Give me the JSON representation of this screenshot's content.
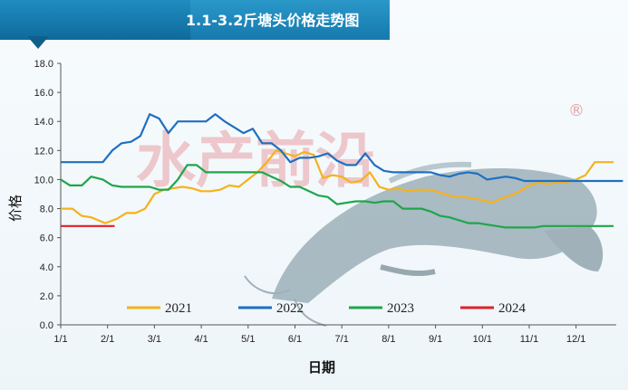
{
  "header": {
    "title": "1.1-3.2斤塘头价格走势图"
  },
  "watermark": {
    "text": "水产前沿",
    "mark": "®"
  },
  "chart_data": {
    "type": "line",
    "title": "1.1-3.2斤塘头价格走势图",
    "xlabel": "日期",
    "ylabel": "价格",
    "xticks": [
      "1/1",
      "2/1",
      "3/1",
      "4/1",
      "5/1",
      "6/1",
      "7/1",
      "8/1",
      "9/1",
      "10/1",
      "11/1",
      "12/1"
    ],
    "xlim": [
      0,
      12
    ],
    "ylim": [
      0,
      18
    ],
    "yticks": [
      "0.0",
      "2.0",
      "4.0",
      "6.0",
      "8.0",
      "10.0",
      "12.0",
      "14.0",
      "16.0",
      "18.0"
    ],
    "grid": false,
    "legend": "bottom",
    "series": [
      {
        "name": "2021",
        "color": "#f5b21b",
        "x": [
          0,
          0.25,
          0.45,
          0.65,
          0.95,
          1.2,
          1.4,
          1.6,
          1.8,
          2.0,
          2.2,
          2.4,
          2.6,
          2.8,
          3.0,
          3.2,
          3.4,
          3.6,
          3.8,
          4.0,
          4.2,
          4.4,
          4.6,
          4.8,
          5.0,
          5.2,
          5.4,
          5.6,
          5.8,
          6.0,
          6.2,
          6.4,
          6.6,
          6.8,
          7.0,
          7.2,
          7.4,
          7.6,
          7.8,
          8.0,
          8.2,
          8.4,
          8.6,
          8.8,
          9.0,
          9.2,
          9.4,
          9.6,
          9.8,
          10.0,
          10.2,
          10.4,
          10.6,
          10.8,
          11.0,
          11.2,
          11.4,
          11.6,
          11.8
        ],
        "y": [
          8.0,
          8.0,
          7.5,
          7.4,
          7.0,
          7.3,
          7.7,
          7.7,
          8.0,
          9.0,
          9.3,
          9.4,
          9.5,
          9.4,
          9.2,
          9.2,
          9.3,
          9.6,
          9.5,
          10.0,
          10.5,
          11.2,
          12.0,
          11.8,
          11.6,
          11.9,
          11.7,
          10.1,
          10.3,
          10.2,
          9.8,
          9.9,
          10.5,
          9.5,
          9.3,
          9.4,
          9.2,
          9.3,
          9.3,
          9.2,
          9.0,
          8.8,
          8.8,
          8.7,
          8.6,
          8.4,
          8.7,
          8.9,
          9.2,
          9.6,
          9.8,
          9.7,
          9.8,
          9.8,
          10.0,
          10.3,
          11.2,
          11.2,
          11.2
        ]
      },
      {
        "name": "2022",
        "color": "#1f6fc0",
        "x": [
          0,
          0.3,
          0.6,
          0.9,
          1.1,
          1.3,
          1.5,
          1.7,
          1.9,
          2.1,
          2.3,
          2.5,
          2.7,
          2.9,
          3.1,
          3.3,
          3.5,
          3.7,
          3.9,
          4.1,
          4.3,
          4.5,
          4.7,
          4.9,
          5.1,
          5.3,
          5.5,
          5.7,
          5.9,
          6.1,
          6.3,
          6.5,
          6.7,
          6.9,
          7.1,
          7.3,
          7.5,
          7.7,
          7.9,
          8.1,
          8.3,
          8.5,
          8.7,
          8.9,
          9.1,
          9.3,
          9.5,
          9.7,
          9.9,
          10.1,
          10.3,
          10.5,
          10.7,
          10.9,
          11.1,
          11.3,
          11.5,
          11.7,
          12.0
        ],
        "y": [
          11.2,
          11.2,
          11.2,
          11.2,
          12.0,
          12.5,
          12.6,
          13.0,
          14.5,
          14.2,
          13.2,
          14.0,
          14.0,
          14.0,
          14.0,
          14.5,
          14.0,
          13.6,
          13.2,
          13.5,
          12.5,
          12.5,
          12.0,
          11.2,
          11.5,
          11.5,
          11.6,
          11.8,
          11.3,
          11.0,
          11.0,
          11.8,
          11.0,
          10.6,
          10.5,
          10.5,
          10.5,
          10.5,
          10.5,
          10.3,
          10.2,
          10.4,
          10.5,
          10.4,
          10.0,
          10.1,
          10.2,
          10.1,
          9.9,
          9.9,
          9.9,
          9.9,
          9.9,
          9.9,
          9.9,
          9.9,
          9.9,
          9.9,
          9.9
        ]
      },
      {
        "name": "2023",
        "color": "#1ea64a",
        "x": [
          0,
          0.2,
          0.45,
          0.65,
          0.9,
          1.1,
          1.3,
          1.5,
          1.7,
          1.9,
          2.1,
          2.3,
          2.5,
          2.7,
          2.9,
          3.1,
          3.3,
          3.5,
          3.7,
          3.9,
          4.1,
          4.3,
          4.5,
          4.7,
          4.9,
          5.1,
          5.3,
          5.5,
          5.7,
          5.9,
          6.1,
          6.3,
          6.5,
          6.7,
          6.9,
          7.1,
          7.3,
          7.5,
          7.7,
          7.9,
          8.1,
          8.3,
          8.5,
          8.7,
          8.9,
          9.1,
          9.3,
          9.5,
          9.7,
          9.9,
          10.1,
          10.3,
          10.5,
          10.7,
          10.9,
          11.1,
          11.3,
          11.5,
          11.8
        ],
        "y": [
          10.0,
          9.6,
          9.6,
          10.2,
          10.0,
          9.6,
          9.5,
          9.5,
          9.5,
          9.5,
          9.3,
          9.3,
          10.0,
          11.0,
          11.0,
          10.5,
          10.5,
          10.5,
          10.5,
          10.5,
          10.5,
          10.5,
          10.2,
          9.9,
          9.5,
          9.5,
          9.2,
          8.9,
          8.8,
          8.3,
          8.4,
          8.5,
          8.5,
          8.4,
          8.5,
          8.5,
          8.0,
          8.0,
          8.0,
          7.8,
          7.5,
          7.4,
          7.2,
          7.0,
          7.0,
          6.9,
          6.8,
          6.7,
          6.7,
          6.7,
          6.7,
          6.8,
          6.8,
          6.8,
          6.8,
          6.8,
          6.8,
          6.8,
          6.8
        ]
      },
      {
        "name": "2024",
        "color": "#e0202a",
        "x": [
          0,
          1.15
        ],
        "y": [
          6.8,
          6.8
        ]
      }
    ]
  }
}
